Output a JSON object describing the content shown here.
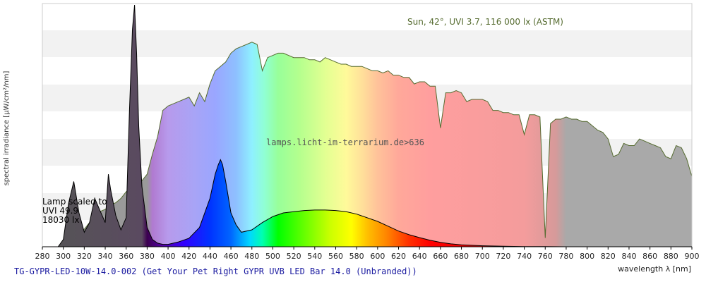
{
  "chart_data": {
    "type": "area",
    "xlabel": "wavelength λ [nm]",
    "ylabel": "spectral irradiance [µW/cm²/nm]",
    "xlim": [
      280,
      900
    ],
    "x_ticks": [
      280,
      300,
      320,
      340,
      360,
      380,
      400,
      420,
      440,
      460,
      480,
      500,
      520,
      540,
      560,
      580,
      600,
      620,
      640,
      660,
      680,
      700,
      720,
      740,
      760,
      780,
      800,
      820,
      840,
      860,
      880,
      900
    ],
    "reference_label": "Sun, 42°, UVI 3.7, 116 000 lx (ASTM)",
    "watermark": "lamps.licht-im-terrarium.de>636",
    "lamp_note": [
      "Lamp scaled to",
      "UVI 49.9",
      "18030 lx"
    ],
    "footer": "TG-GYPR-LED-10W-14.0-002 (Get Your Pet Right GYPR UVB LED Bar 14.0 (Unbranded))",
    "grid": "horizontal bands",
    "colors": {
      "sun_outline": "#556b2f",
      "lamp_uv": "#555555",
      "ir": "#a9a9a9",
      "footer": "#1a1aa0"
    },
    "series": [
      {
        "name": "Sun, 42°, UVI 3.7, 116 000 lx (ASTM)",
        "x": [
          290,
          295,
          300,
          305,
          310,
          315,
          320,
          325,
          330,
          335,
          340,
          345,
          350,
          355,
          360,
          365,
          370,
          375,
          380,
          385,
          390,
          395,
          400,
          405,
          410,
          415,
          420,
          425,
          430,
          435,
          440,
          445,
          450,
          455,
          460,
          465,
          470,
          475,
          480,
          485,
          490,
          495,
          500,
          505,
          510,
          515,
          520,
          525,
          530,
          535,
          540,
          545,
          550,
          555,
          560,
          565,
          570,
          575,
          580,
          585,
          590,
          595,
          600,
          605,
          610,
          615,
          620,
          625,
          630,
          635,
          640,
          645,
          650,
          655,
          660,
          665,
          670,
          675,
          680,
          685,
          690,
          695,
          700,
          705,
          710,
          715,
          720,
          725,
          730,
          735,
          740,
          745,
          750,
          755,
          760,
          765,
          770,
          775,
          780,
          785,
          790,
          795,
          800,
          805,
          810,
          815,
          820,
          825,
          830,
          835,
          840,
          845,
          850,
          855,
          860,
          865,
          870,
          875,
          880,
          885,
          890,
          895,
          900
        ],
        "y": [
          0,
          0,
          0.2,
          1.0,
          2.5,
          5.0,
          8.0,
          11,
          14,
          16,
          17,
          19,
          20,
          22,
          25,
          27,
          31,
          30,
          33,
          42,
          50,
          62,
          64,
          65,
          66,
          67,
          68,
          64,
          70,
          66,
          74,
          80,
          82,
          84,
          88,
          90,
          91,
          92,
          93,
          92,
          80,
          86,
          87,
          88,
          88,
          87,
          86,
          86,
          86,
          85,
          85,
          84,
          86,
          85,
          84,
          83,
          83,
          82,
          82,
          82,
          81,
          80,
          80,
          79,
          80,
          78,
          78,
          77,
          77,
          74,
          75,
          75,
          73,
          73,
          54,
          70,
          70,
          71,
          70,
          66,
          67,
          67,
          67,
          66,
          62,
          62,
          61,
          61,
          60,
          60,
          51,
          60,
          60,
          59,
          4,
          56,
          58,
          58,
          59,
          58,
          58,
          57,
          57,
          55,
          53,
          52,
          49,
          41,
          42,
          47,
          46,
          46,
          49,
          48,
          47,
          46,
          45,
          41,
          40,
          46,
          45,
          40,
          32
        ]
      },
      {
        "name": "Lamp (scaled)",
        "x": [
          295,
          300,
          305,
          310,
          315,
          320,
          325,
          330,
          335,
          340,
          343,
          345,
          350,
          355,
          360,
          363,
          366,
          368,
          370,
          372,
          375,
          380,
          385,
          390,
          395,
          400,
          405,
          410,
          420,
          430,
          440,
          445,
          448,
          450,
          452,
          455,
          460,
          465,
          470,
          480,
          490,
          500,
          510,
          520,
          530,
          540,
          550,
          560,
          570,
          580,
          590,
          600,
          610,
          620,
          630,
          640,
          650,
          660,
          670,
          680,
          700,
          720,
          740,
          760,
          780,
          800,
          840,
          880,
          900
        ],
        "y": [
          0,
          3,
          18,
          27,
          14,
          6,
          10,
          20,
          15,
          10,
          30,
          24,
          13,
          7,
          12,
          55,
          90,
          100,
          80,
          50,
          25,
          8,
          3,
          1.5,
          1,
          1,
          1.5,
          2,
          3.5,
          8,
          20,
          30,
          34,
          36,
          34,
          27,
          14,
          9,
          6,
          7,
          10,
          12.5,
          14,
          14.5,
          15,
          15.2,
          15.2,
          15,
          14.5,
          13.5,
          12,
          10.5,
          8.5,
          6.5,
          5,
          3.8,
          2.7,
          1.8,
          1.2,
          0.8,
          0.4,
          0.2,
          0.1,
          0.05,
          0,
          0,
          0,
          0,
          0
        ]
      }
    ]
  }
}
